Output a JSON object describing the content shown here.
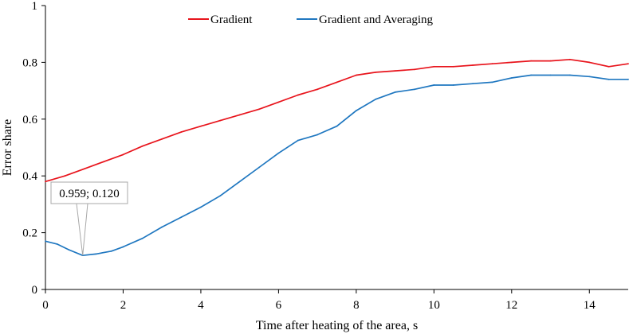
{
  "chart_data": {
    "type": "line",
    "title": "",
    "xlabel": "Time after heating of the area, s",
    "ylabel": "Error share",
    "xlim": [
      0,
      15
    ],
    "ylim": [
      0,
      1
    ],
    "grid": false,
    "legend_position": "top-center",
    "x_ticks": [
      0,
      2,
      4,
      6,
      8,
      10,
      12,
      14
    ],
    "x_tick_labels": [
      "0",
      "2",
      "4",
      "6",
      "8",
      "10",
      "12",
      "14"
    ],
    "y_ticks": [
      0,
      0.2,
      0.4,
      0.6,
      0.8,
      1
    ],
    "y_tick_labels": [
      "0",
      "0.2",
      "0.4",
      "0.6",
      "0.8",
      "1"
    ],
    "series": [
      {
        "name": "Gradient",
        "color": "#e8141c",
        "x": [
          0,
          0.5,
          1,
          1.5,
          2,
          2.5,
          3,
          3.5,
          4,
          4.5,
          5,
          5.5,
          6,
          6.5,
          7,
          7.5,
          8,
          8.5,
          9,
          9.5,
          10,
          10.5,
          11,
          11.5,
          12,
          12.5,
          13,
          13.5,
          14,
          14.5,
          15
        ],
        "y": [
          0.38,
          0.4,
          0.425,
          0.45,
          0.475,
          0.505,
          0.53,
          0.555,
          0.575,
          0.595,
          0.615,
          0.635,
          0.66,
          0.685,
          0.705,
          0.73,
          0.755,
          0.765,
          0.77,
          0.775,
          0.785,
          0.785,
          0.79,
          0.795,
          0.8,
          0.805,
          0.805,
          0.81,
          0.8,
          0.785,
          0.795
        ]
      },
      {
        "name": "Gradient and Averaging",
        "color": "#1f77c0",
        "x": [
          0,
          0.3,
          0.6,
          0.959,
          1.3,
          1.7,
          2,
          2.5,
          3,
          3.5,
          4,
          4.5,
          5,
          5.5,
          6,
          6.5,
          7,
          7.5,
          8,
          8.5,
          9,
          9.5,
          10,
          10.5,
          11,
          11.5,
          12,
          12.5,
          13,
          13.5,
          14,
          14.5,
          15
        ],
        "y": [
          0.17,
          0.16,
          0.14,
          0.12,
          0.125,
          0.135,
          0.15,
          0.18,
          0.22,
          0.255,
          0.29,
          0.33,
          0.38,
          0.43,
          0.48,
          0.525,
          0.545,
          0.575,
          0.63,
          0.67,
          0.695,
          0.705,
          0.72,
          0.72,
          0.725,
          0.73,
          0.745,
          0.755,
          0.755,
          0.755,
          0.75,
          0.74,
          0.74
        ]
      }
    ],
    "annotations": [
      {
        "x": 0.959,
        "y": 0.12,
        "label": "0.959; 0.120"
      }
    ]
  }
}
